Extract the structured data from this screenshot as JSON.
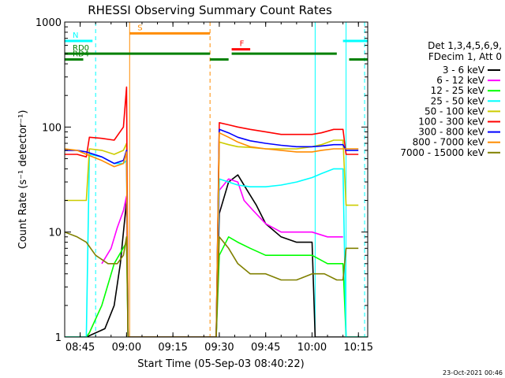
{
  "chart_data": {
    "type": "line",
    "title": "RHESSI Observing Summary Count Rates",
    "xlabel": "Start Time (05-Sep-03 08:40:22)",
    "ylabel": "Count Rate (s⁻¹ detector⁻¹)",
    "x_ticks": [
      "08:45",
      "09:00",
      "09:15",
      "09:30",
      "09:45",
      "10:00",
      "10:15"
    ],
    "y_ticks": [
      "1",
      "10",
      "100",
      "1000"
    ],
    "yscale": "log",
    "ylim": [
      1,
      1000
    ],
    "xlim": [
      "08:40",
      "10:18"
    ],
    "info_lines": [
      "Det 1,3,4,5,6,9,",
      "FDecim 1, Att 0"
    ],
    "footer_date": "23-Oct-2021 00:46",
    "series": [
      {
        "name": "3 - 6 keV",
        "color": "#000000",
        "points": [
          [
            "08:40",
            1
          ],
          [
            "08:47",
            1
          ],
          [
            "08:53",
            1.2
          ],
          [
            "08:56",
            2
          ],
          [
            "08:58",
            5
          ],
          [
            "09:00",
            20
          ],
          [
            "09:00.5",
            1
          ],
          [
            "09:29",
            1
          ],
          [
            "09:30",
            15
          ],
          [
            "09:33",
            30
          ],
          [
            "09:36",
            35
          ],
          [
            "09:39",
            25
          ],
          [
            "09:42",
            18
          ],
          [
            "09:45",
            12
          ],
          [
            "09:50",
            9
          ],
          [
            "09:55",
            8
          ],
          [
            "10:00",
            8
          ],
          [
            "10:01",
            1
          ],
          [
            "10:08",
            1
          ],
          [
            "10:18",
            1
          ]
        ]
      },
      {
        "name": "6 - 12 keV",
        "color": "#ff00ff",
        "points": [
          [
            "08:52",
            5
          ],
          [
            "08:55",
            7
          ],
          [
            "08:57",
            11
          ],
          [
            "08:59",
            16
          ],
          [
            "09:00",
            22
          ],
          [
            "09:00.5",
            1
          ],
          [
            "09:29",
            1
          ],
          [
            "09:30",
            25
          ],
          [
            "09:33",
            32
          ],
          [
            "09:36",
            30
          ],
          [
            "09:38",
            20
          ],
          [
            "09:41",
            16
          ],
          [
            "09:45",
            12
          ],
          [
            "09:50",
            10
          ],
          [
            "09:55",
            10
          ],
          [
            "10:00",
            10
          ],
          [
            "10:05",
            9
          ],
          [
            "10:10",
            9
          ]
        ]
      },
      {
        "name": "12 - 25 keV",
        "color": "#00ff00",
        "points": [
          [
            "08:40",
            1
          ],
          [
            "08:47",
            1
          ],
          [
            "08:48",
            1.1
          ],
          [
            "08:52",
            2
          ],
          [
            "08:56",
            5
          ],
          [
            "09:00",
            8
          ],
          [
            "09:00.5",
            1
          ],
          [
            "09:29",
            1
          ],
          [
            "09:30",
            6
          ],
          [
            "09:33",
            9
          ],
          [
            "09:36",
            8
          ],
          [
            "09:40",
            7
          ],
          [
            "09:45",
            6
          ],
          [
            "09:50",
            6
          ],
          [
            "09:55",
            6
          ],
          [
            "10:00",
            6
          ],
          [
            "10:05",
            5
          ],
          [
            "10:10",
            5
          ],
          [
            "10:11",
            1
          ],
          [
            "10:18",
            1
          ]
        ]
      },
      {
        "name": "25 - 50 keV",
        "color": "#00ffff",
        "points": [
          [
            "08:40",
            1
          ],
          [
            "08:47",
            1
          ],
          [
            "08:48",
            55
          ],
          [
            "08:52",
            52
          ],
          [
            "08:56",
            45
          ],
          [
            "08:59",
            45
          ],
          [
            "09:00",
            48
          ],
          [
            "09:00.5",
            1
          ],
          [
            "09:29",
            1
          ],
          [
            "09:30",
            32
          ],
          [
            "09:33",
            30
          ],
          [
            "09:36",
            28
          ],
          [
            "09:40",
            27
          ],
          [
            "09:45",
            27
          ],
          [
            "09:50",
            28
          ],
          [
            "09:55",
            30
          ],
          [
            "10:00",
            33
          ],
          [
            "10:03",
            36
          ],
          [
            "10:07",
            40
          ],
          [
            "10:10",
            40
          ],
          [
            "10:11",
            1
          ],
          [
            "10:18",
            1
          ]
        ]
      },
      {
        "name": "50 - 100 keV",
        "color": "#cccc00",
        "points": [
          [
            "08:40",
            20
          ],
          [
            "08:45",
            20
          ],
          [
            "08:47",
            20
          ],
          [
            "08:48",
            62
          ],
          [
            "08:52",
            60
          ],
          [
            "08:56",
            55
          ],
          [
            "08:59",
            60
          ],
          [
            "09:00",
            70
          ],
          [
            "09:00.5",
            1
          ],
          [
            "09:29",
            1
          ],
          [
            "09:30",
            72
          ],
          [
            "09:33",
            68
          ],
          [
            "09:36",
            65
          ],
          [
            "09:40",
            64
          ],
          [
            "09:45",
            62
          ],
          [
            "09:50",
            62
          ],
          [
            "09:55",
            62
          ],
          [
            "10:00",
            65
          ],
          [
            "10:03",
            68
          ],
          [
            "10:07",
            75
          ],
          [
            "10:10",
            75
          ],
          [
            "10:11",
            18
          ],
          [
            "10:15",
            18
          ]
        ]
      },
      {
        "name": "100 - 300 keV",
        "color": "#ff0000",
        "points": [
          [
            "08:40",
            55
          ],
          [
            "08:44",
            55
          ],
          [
            "08:47",
            52
          ],
          [
            "08:48",
            80
          ],
          [
            "08:52",
            78
          ],
          [
            "08:56",
            75
          ],
          [
            "08:59",
            100
          ],
          [
            "09:00",
            240
          ],
          [
            "09:00.5",
            1
          ],
          [
            "09:29",
            1
          ],
          [
            "09:30",
            110
          ],
          [
            "09:33",
            105
          ],
          [
            "09:36",
            100
          ],
          [
            "09:40",
            95
          ],
          [
            "09:45",
            90
          ],
          [
            "09:50",
            85
          ],
          [
            "09:55",
            85
          ],
          [
            "10:00",
            85
          ],
          [
            "10:03",
            88
          ],
          [
            "10:07",
            95
          ],
          [
            "10:10",
            95
          ],
          [
            "10:11",
            55
          ],
          [
            "10:15",
            55
          ]
        ]
      },
      {
        "name": "300 - 800 keV",
        "color": "#0000ff",
        "points": [
          [
            "08:40",
            60
          ],
          [
            "08:44",
            60
          ],
          [
            "08:47",
            58
          ],
          [
            "08:52",
            52
          ],
          [
            "08:56",
            45
          ],
          [
            "08:59",
            48
          ],
          [
            "09:00",
            60
          ],
          [
            "09:00.5",
            1
          ],
          [
            "09:29",
            1
          ],
          [
            "09:30",
            95
          ],
          [
            "09:33",
            88
          ],
          [
            "09:36",
            80
          ],
          [
            "09:40",
            74
          ],
          [
            "09:45",
            70
          ],
          [
            "09:50",
            67
          ],
          [
            "09:55",
            65
          ],
          [
            "10:00",
            65
          ],
          [
            "10:03",
            66
          ],
          [
            "10:07",
            68
          ],
          [
            "10:10",
            68
          ],
          [
            "10:11",
            60
          ],
          [
            "10:15",
            60
          ]
        ]
      },
      {
        "name": "800 - 7000 keV",
        "color": "#ff8c00",
        "points": [
          [
            "08:40",
            62
          ],
          [
            "08:44",
            60
          ],
          [
            "08:47",
            55
          ],
          [
            "08:52",
            48
          ],
          [
            "08:56",
            42
          ],
          [
            "08:59",
            45
          ],
          [
            "09:00",
            58
          ],
          [
            "09:00.5",
            1
          ],
          [
            "09:29",
            1
          ],
          [
            "09:30",
            88
          ],
          [
            "09:33",
            80
          ],
          [
            "09:36",
            72
          ],
          [
            "09:40",
            65
          ],
          [
            "09:45",
            62
          ],
          [
            "09:50",
            60
          ],
          [
            "09:55",
            58
          ],
          [
            "10:00",
            58
          ],
          [
            "10:03",
            60
          ],
          [
            "10:07",
            62
          ],
          [
            "10:10",
            62
          ],
          [
            "10:11",
            62
          ],
          [
            "10:15",
            62
          ]
        ]
      },
      {
        "name": "7000 - 15000 keV",
        "color": "#808000",
        "points": [
          [
            "08:40",
            10
          ],
          [
            "08:44",
            9
          ],
          [
            "08:47",
            8
          ],
          [
            "08:50",
            6
          ],
          [
            "08:54",
            5
          ],
          [
            "08:57",
            5
          ],
          [
            "08:59",
            6
          ],
          [
            "09:00",
            9
          ],
          [
            "09:00.5",
            1
          ],
          [
            "09:29",
            1
          ],
          [
            "09:30",
            9
          ],
          [
            "09:33",
            7
          ],
          [
            "09:36",
            5
          ],
          [
            "09:40",
            4
          ],
          [
            "09:45",
            4
          ],
          [
            "09:50",
            3.5
          ],
          [
            "09:55",
            3.5
          ],
          [
            "10:00",
            4
          ],
          [
            "10:04",
            4
          ],
          [
            "10:08",
            3.5
          ],
          [
            "10:10",
            3.5
          ],
          [
            "10:11",
            7
          ],
          [
            "10:15",
            7
          ]
        ]
      }
    ],
    "flags": {
      "SAA": {
        "label": "S",
        "color": "#ff8c00",
        "y": 780,
        "intervals": [
          [
            "09:01",
            "09:27"
          ]
        ]
      },
      "Night": {
        "label": "N",
        "color": "#00ffff",
        "y": 660,
        "intervals": [
          [
            "08:40",
            "08:49"
          ],
          [
            "10:10",
            "10:18"
          ]
        ]
      },
      "Flare": {
        "label": "F",
        "color": "#ff0000",
        "y": 550,
        "intervals": [
          [
            "09:34",
            "09:40"
          ]
        ]
      },
      "RD0": {
        "label": "RD0",
        "color": "#008000",
        "y": 500,
        "intervals": [
          [
            "08:40",
            "09:27"
          ],
          [
            "09:34",
            "10:08"
          ]
        ]
      },
      "RD4": {
        "label": "RD4",
        "color": "#008000",
        "y": 440,
        "intervals": [
          [
            "08:40",
            "08:46"
          ],
          [
            "09:27",
            "09:33"
          ],
          [
            "10:12",
            "10:18"
          ]
        ]
      }
    },
    "vlines": [
      {
        "time": "08:50",
        "color": "#00ffff",
        "style": "dashed"
      },
      {
        "time": "09:01",
        "color": "#ff8c00",
        "style": "solid"
      },
      {
        "time": "09:27",
        "color": "#ff8c00",
        "style": "dashed"
      },
      {
        "time": "10:01",
        "color": "#00ffff",
        "style": "solid"
      },
      {
        "time": "10:11",
        "color": "#00ffff",
        "style": "solid"
      },
      {
        "time": "10:17",
        "color": "#00ffff",
        "style": "dashed"
      }
    ],
    "grid": false,
    "legend_position": "right"
  }
}
